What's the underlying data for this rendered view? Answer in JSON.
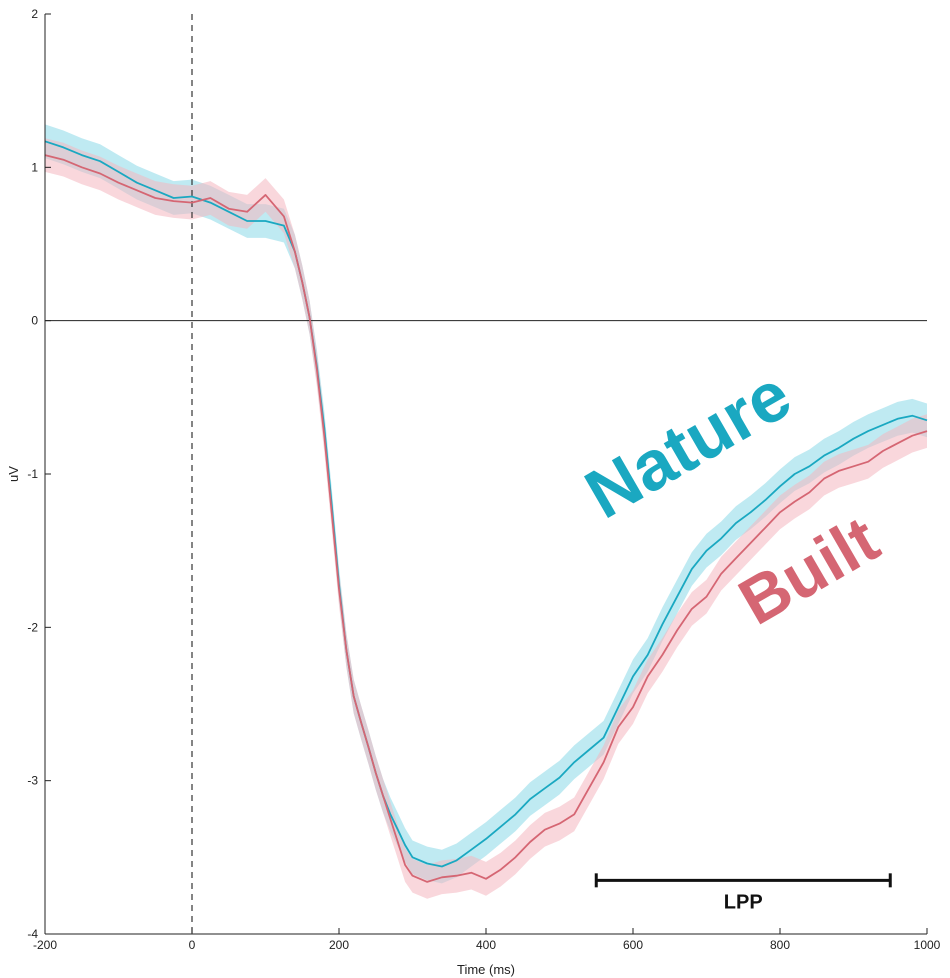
{
  "chart_data": {
    "type": "line",
    "xlabel": "Time (ms)",
    "ylabel": "uV",
    "xlim": [
      -200,
      1000
    ],
    "ylim": [
      -4,
      2
    ],
    "xticks": [
      "-200",
      "0",
      "200",
      "400",
      "600",
      "800",
      "1000"
    ],
    "yticks": [
      "-4",
      "-3",
      "-2",
      "-1",
      "0",
      "1",
      "2"
    ],
    "grid": false,
    "stimulus_onset_ms": 0,
    "series": [
      {
        "name": "Nature",
        "color": "#1aa8c1",
        "band_color": "#8ad8e8",
        "x": [
          -200,
          -175,
          -150,
          -125,
          -100,
          -75,
          -50,
          -25,
          0,
          25,
          50,
          75,
          100,
          125,
          140,
          150,
          160,
          170,
          180,
          190,
          200,
          210,
          220,
          230,
          240,
          250,
          260,
          270,
          280,
          290,
          300,
          320,
          340,
          360,
          380,
          400,
          420,
          440,
          460,
          480,
          500,
          520,
          540,
          560,
          580,
          600,
          620,
          640,
          660,
          680,
          700,
          720,
          740,
          760,
          780,
          800,
          820,
          840,
          860,
          880,
          900,
          920,
          940,
          960,
          980,
          1000
        ],
        "y": [
          1.17,
          1.13,
          1.08,
          1.04,
          0.97,
          0.9,
          0.85,
          0.8,
          0.81,
          0.77,
          0.71,
          0.65,
          0.65,
          0.62,
          0.45,
          0.25,
          0.02,
          -0.3,
          -0.7,
          -1.2,
          -1.72,
          -2.15,
          -2.45,
          -2.62,
          -2.78,
          -2.95,
          -3.1,
          -3.22,
          -3.32,
          -3.42,
          -3.5,
          -3.54,
          -3.56,
          -3.52,
          -3.45,
          -3.38,
          -3.3,
          -3.22,
          -3.12,
          -3.05,
          -2.98,
          -2.88,
          -2.8,
          -2.72,
          -2.52,
          -2.32,
          -2.18,
          -1.98,
          -1.8,
          -1.62,
          -1.5,
          -1.42,
          -1.32,
          -1.25,
          -1.17,
          -1.08,
          -1.0,
          -0.95,
          -0.88,
          -0.83,
          -0.77,
          -0.72,
          -0.68,
          -0.64,
          -0.62,
          -0.65
        ]
      },
      {
        "name": "Built",
        "color": "#d56673",
        "band_color": "#f4b6bf",
        "x": [
          -200,
          -175,
          -150,
          -125,
          -100,
          -75,
          -50,
          -25,
          0,
          25,
          50,
          75,
          100,
          125,
          140,
          150,
          160,
          170,
          180,
          190,
          200,
          210,
          220,
          230,
          240,
          250,
          260,
          270,
          280,
          290,
          300,
          320,
          340,
          360,
          380,
          400,
          420,
          440,
          460,
          480,
          500,
          520,
          540,
          560,
          580,
          600,
          620,
          640,
          660,
          680,
          700,
          720,
          740,
          760,
          780,
          800,
          820,
          840,
          860,
          880,
          900,
          920,
          940,
          960,
          980,
          1000
        ],
        "y": [
          1.08,
          1.05,
          1.0,
          0.96,
          0.9,
          0.85,
          0.8,
          0.78,
          0.77,
          0.8,
          0.73,
          0.71,
          0.82,
          0.68,
          0.45,
          0.25,
          0.02,
          -0.32,
          -0.75,
          -1.25,
          -1.75,
          -2.15,
          -2.45,
          -2.62,
          -2.78,
          -2.95,
          -3.1,
          -3.25,
          -3.4,
          -3.55,
          -3.62,
          -3.66,
          -3.63,
          -3.62,
          -3.6,
          -3.64,
          -3.58,
          -3.5,
          -3.4,
          -3.32,
          -3.28,
          -3.22,
          -3.05,
          -2.88,
          -2.65,
          -2.52,
          -2.32,
          -2.18,
          -2.02,
          -1.88,
          -1.8,
          -1.65,
          -1.55,
          -1.45,
          -1.35,
          -1.25,
          -1.18,
          -1.12,
          -1.03,
          -0.98,
          -0.95,
          -0.92,
          -0.85,
          -0.8,
          -0.75,
          -0.72
        ]
      }
    ],
    "annotations": [
      {
        "text": "LPP",
        "x_start": 550,
        "x_end": 950,
        "y": -3.65
      }
    ]
  }
}
